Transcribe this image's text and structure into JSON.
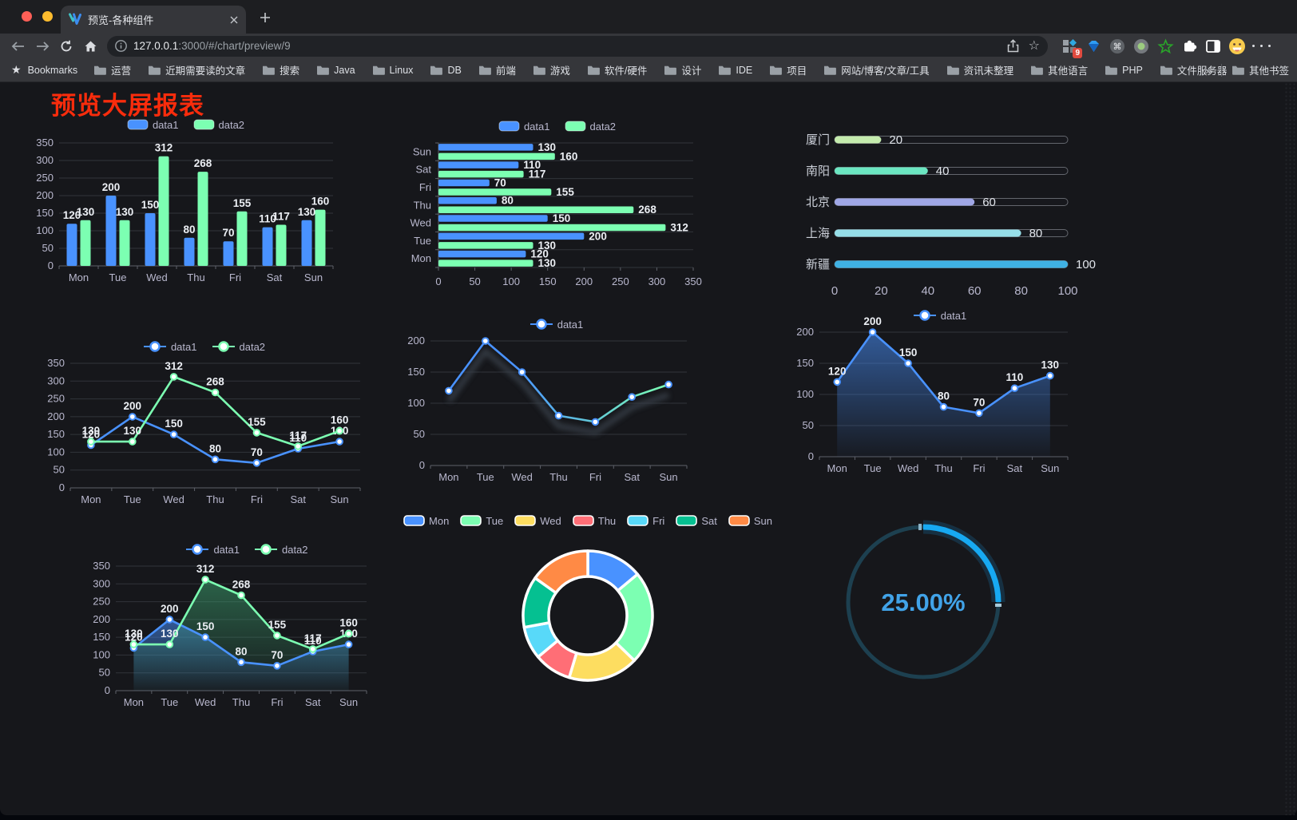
{
  "browser": {
    "tab_title": "预览-各种组件",
    "url": {
      "host": "127.0.0.1",
      "rest": ":3000/#/chart/preview/9"
    },
    "extension_badge": "9",
    "traffic_lights": [
      "#ff5f57",
      "#febc2e",
      "#28c840"
    ]
  },
  "bookmarks_bar": {
    "bookmarks_label": "Bookmarks",
    "folders": [
      "运营",
      "近期需要读的文章",
      "搜索",
      "Java",
      "Linux",
      "DB",
      "前端",
      "游戏",
      "软件/硬件",
      "设计",
      "IDE",
      "项目",
      "网站/博客/文章/工具",
      "资讯未整理",
      "其他语言",
      "PHP",
      "文件服务器"
    ],
    "overflow_chevron": "»",
    "other_bookmarks": "其他书签"
  },
  "page": {
    "title": "预览大屏报表",
    "title_color": "#f92c0c"
  },
  "palette": {
    "data1": "#4992ff",
    "data2": "#7cffb2",
    "axis_label": "#b9b8ce",
    "grid_line": "#31343b",
    "axis_line": "#5d6069",
    "value_label": "#eceff4",
    "gauge_color": "#17a9f2",
    "gauge_track": "#1d4050",
    "pie_colors": [
      "#4992ff",
      "#7cffb2",
      "#fddd60",
      "#ff6e76",
      "#58d9f9",
      "#05c091",
      "#ff8a45"
    ]
  },
  "chart_data": [
    {
      "id": "bar-grouped",
      "type": "bar",
      "categories": [
        "Mon",
        "Tue",
        "Wed",
        "Thu",
        "Fri",
        "Sat",
        "Sun"
      ],
      "series": [
        {
          "name": "data1",
          "color": "#4992ff",
          "values": [
            120,
            200,
            150,
            80,
            70,
            110,
            130
          ]
        },
        {
          "name": "data2",
          "color": "#7cffb2",
          "values": [
            130,
            130,
            312,
            268,
            155,
            117,
            160
          ]
        }
      ],
      "ylim": [
        0,
        350
      ],
      "ytick_step": 50,
      "legend_position": "top",
      "grid": true
    },
    {
      "id": "bar-horizontal",
      "type": "bar",
      "orientation": "horizontal",
      "categories": [
        "Mon",
        "Tue",
        "Wed",
        "Thu",
        "Fri",
        "Sat",
        "Sun"
      ],
      "series": [
        {
          "name": "data1",
          "color": "#4992ff",
          "values": [
            120,
            200,
            150,
            80,
            70,
            110,
            130
          ]
        },
        {
          "name": "data2",
          "color": "#7cffb2",
          "values": [
            130,
            130,
            312,
            268,
            155,
            117,
            160
          ]
        }
      ],
      "xlim": [
        0,
        350
      ],
      "xtick_step": 50,
      "legend_position": "top",
      "grid": true
    },
    {
      "id": "progress-bars",
      "type": "bar",
      "orientation": "horizontal",
      "items": [
        {
          "label": "厦门",
          "value": 20,
          "color": "#c4ebad"
        },
        {
          "label": "南阳",
          "value": 40,
          "color": "#6be6c1"
        },
        {
          "label": "北京",
          "value": 60,
          "color": "#a0a7e6"
        },
        {
          "label": "上海",
          "value": 80,
          "color": "#96dee8"
        },
        {
          "label": "新疆",
          "value": 100,
          "color": "#3fb1e3"
        }
      ],
      "xlim": [
        0,
        100
      ],
      "xticks": [
        0,
        20,
        40,
        60,
        80,
        100
      ]
    },
    {
      "id": "line-two-series",
      "type": "line",
      "categories": [
        "Mon",
        "Tue",
        "Wed",
        "Thu",
        "Fri",
        "Sat",
        "Sun"
      ],
      "series": [
        {
          "name": "data1",
          "color": "#4992ff",
          "values": [
            120,
            200,
            150,
            80,
            70,
            110,
            130
          ]
        },
        {
          "name": "data2",
          "color": "#7cffb2",
          "values": [
            130,
            130,
            312,
            268,
            155,
            117,
            160
          ]
        }
      ],
      "ylim": [
        0,
        350
      ],
      "ytick_step": 50,
      "show_labels": true,
      "grid": true
    },
    {
      "id": "line-gradient",
      "type": "line",
      "categories": [
        "Mon",
        "Tue",
        "Wed",
        "Thu",
        "Fri",
        "Sat",
        "Sun"
      ],
      "series": [
        {
          "name": "data1",
          "gradient": [
            "#4992ff",
            "#7cffb2"
          ],
          "symbol": "#4992ff",
          "values": [
            120,
            200,
            150,
            80,
            70,
            110,
            130
          ]
        }
      ],
      "ylim": [
        0,
        200
      ],
      "ytick_step": 50,
      "show_labels": false,
      "grid": true
    },
    {
      "id": "area-single",
      "type": "area",
      "categories": [
        "Mon",
        "Tue",
        "Wed",
        "Thu",
        "Fri",
        "Sat",
        "Sun"
      ],
      "series": [
        {
          "name": "data1",
          "color": "#4992ff",
          "area": true,
          "values": [
            120,
            200,
            150,
            80,
            70,
            110,
            130
          ]
        }
      ],
      "ylim": [
        0,
        200
      ],
      "ytick_step": 50,
      "show_labels": true,
      "grid": true
    },
    {
      "id": "area-two-series",
      "type": "area",
      "categories": [
        "Mon",
        "Tue",
        "Wed",
        "Thu",
        "Fri",
        "Sat",
        "Sun"
      ],
      "series": [
        {
          "name": "data1",
          "color": "#4992ff",
          "area": true,
          "values": [
            120,
            200,
            150,
            80,
            70,
            110,
            130
          ]
        },
        {
          "name": "data2",
          "color": "#7cffb2",
          "area": true,
          "area_color": "#3ca06e",
          "values": [
            130,
            130,
            312,
            268,
            155,
            117,
            160
          ]
        }
      ],
      "ylim": [
        0,
        350
      ],
      "ytick_step": 50,
      "show_labels": true,
      "grid": true
    },
    {
      "id": "donut",
      "type": "pie",
      "categories": [
        "Mon",
        "Tue",
        "Wed",
        "Thu",
        "Fri",
        "Sat",
        "Sun"
      ],
      "values": [
        120,
        200,
        150,
        80,
        70,
        110,
        130
      ],
      "colors": [
        "#4992ff",
        "#7cffb2",
        "#fddd60",
        "#ff6e76",
        "#58d9f9",
        "#05c091",
        "#ff8a45"
      ],
      "inner_radius": 49,
      "outer_radius": 81,
      "legend_position": "top"
    },
    {
      "id": "gauge",
      "type": "gauge",
      "value": 25,
      "max": 100,
      "display": "25.00%"
    }
  ]
}
